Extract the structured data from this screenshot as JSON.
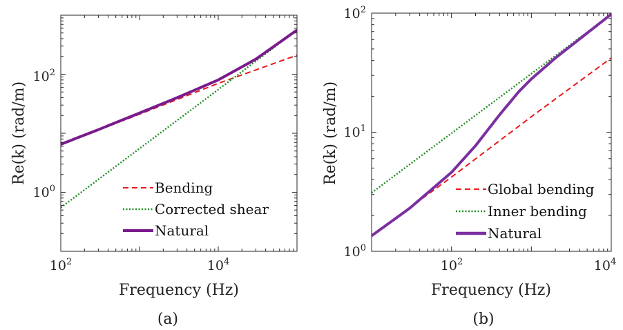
{
  "chart_data": [
    {
      "type": "line",
      "caption": "(a)",
      "xlabel": "Frequency (Hz)",
      "ylabel": "Re(k) (rad/m)",
      "xscale": "log",
      "yscale": "log",
      "xlim": [
        100,
        100000
      ],
      "ylim": [
        0.1,
        1000
      ],
      "xticks": [
        {
          "value": 100,
          "base": "10",
          "exp": "2"
        },
        {
          "value": 10000,
          "base": "10",
          "exp": "4"
        }
      ],
      "yticks": [
        {
          "value": 1,
          "base": "10",
          "exp": "0"
        },
        {
          "value": 100,
          "base": "10",
          "exp": "2"
        }
      ],
      "legend_position": "bottom-right",
      "series": [
        {
          "name": "Bending",
          "style": "dashed",
          "color": "#e8191b",
          "x": [
            100,
            1000,
            10000,
            100000
          ],
          "y": [
            6.5,
            21,
            70,
            210
          ]
        },
        {
          "name": "Corrected shear",
          "style": "dotted",
          "color": "#1e8c1e",
          "x": [
            100,
            1000,
            10000,
            100000
          ],
          "y": [
            0.55,
            5.5,
            55,
            560
          ]
        },
        {
          "name": "Natural",
          "style": "solid",
          "color": "#7a1b8c",
          "x": [
            100,
            300,
            1000,
            3000,
            10000,
            30000,
            100000
          ],
          "y": [
            6.5,
            11.5,
            22,
            40,
            80,
            180,
            560
          ]
        }
      ]
    },
    {
      "type": "line",
      "caption": "(b)",
      "xlabel": "Frequency (Hz)",
      "ylabel": "Re(k) (rad/m)",
      "xscale": "log",
      "yscale": "log",
      "xlim": [
        10,
        10000
      ],
      "ylim": [
        1,
        100
      ],
      "xticks": [
        {
          "value": 100,
          "base": "10",
          "exp": "2"
        },
        {
          "value": 10000,
          "base": "10",
          "exp": "4"
        }
      ],
      "yticks": [
        {
          "value": 1,
          "base": "10",
          "exp": "0"
        },
        {
          "value": 10,
          "base": "10",
          "exp": "1"
        },
        {
          "value": 100,
          "base": "10",
          "exp": "2"
        }
      ],
      "legend_position": "bottom-right",
      "series": [
        {
          "name": "Global bending",
          "style": "dashed",
          "color": "#e8191b",
          "x": [
            10,
            100,
            1000,
            10000
          ],
          "y": [
            1.35,
            4.2,
            13.5,
            42
          ]
        },
        {
          "name": "Inner bending",
          "style": "dotted",
          "color": "#1e8c1e",
          "x": [
            10,
            100,
            1000,
            10000
          ],
          "y": [
            3.1,
            9.8,
            31,
            98
          ]
        },
        {
          "name": "Natural",
          "style": "solid",
          "color": "#7b2fa0",
          "x": [
            10,
            30,
            100,
            200,
            400,
            700,
            1000,
            2000,
            5000,
            10000
          ],
          "y": [
            1.35,
            2.3,
            4.6,
            7.7,
            14,
            22,
            28,
            42,
            68,
            98
          ]
        }
      ]
    }
  ]
}
